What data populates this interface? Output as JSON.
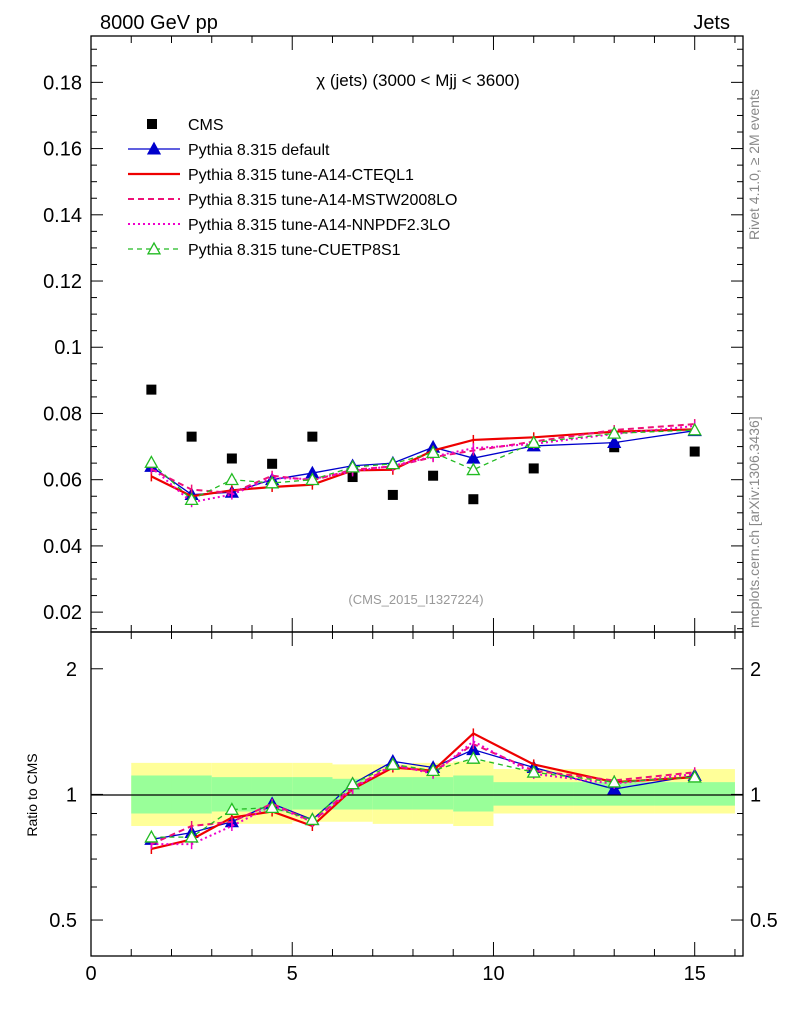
{
  "header": {
    "left": "8000 GeV pp",
    "right": "Jets",
    "plot_title": "χ (jets) (3000 < Mjj < 3600)",
    "analysis_id": "(CMS_2015_I1327224)",
    "side_label_top": "Rivet 4.1.0, ≥ 2M events",
    "side_label_bottom": "mcplots.cern.ch [arXiv:1306.3436]",
    "ratio_ylabel": "Ratio to CMS"
  },
  "colors": {
    "cms": "#000000",
    "default": "#0000cc",
    "cteql1": "#ee0000",
    "mstw": "#ee1177",
    "nnpdf": "#ee00cc",
    "cuetp8s1": "#22bb22",
    "band_inner": "#99ff99",
    "band_outer": "#ffff99"
  },
  "chart_data": [
    {
      "type": "scatter",
      "panel": "main",
      "title": "χ (jets) (3000 < Mjj < 3600)",
      "xlabel": "",
      "ylabel": "",
      "xlim": [
        0,
        16.2
      ],
      "ylim": [
        0.014,
        0.194
      ],
      "yticks": [
        "0.02",
        "0.04",
        "0.06",
        "0.08",
        "0.1",
        "0.12",
        "0.14",
        "0.16",
        "0.18"
      ],
      "legend_position": "top-left",
      "x": [
        1.5,
        2.5,
        3.5,
        4.5,
        5.5,
        6.5,
        7.5,
        8.5,
        9.5,
        11,
        13,
        15
      ],
      "series": [
        {
          "key": "cms",
          "name": "CMS",
          "style": "square",
          "values": [
            0.0872,
            0.073,
            0.0664,
            0.0648,
            0.073,
            0.0608,
            0.0554,
            0.0612,
            0.0541,
            0.0634,
            0.0698,
            0.0685
          ]
        },
        {
          "key": "default",
          "name": "Pythia 8.315 default",
          "style": "line-triangle",
          "values": [
            0.064,
            0.0555,
            0.0562,
            0.06,
            0.062,
            0.0642,
            0.065,
            0.0698,
            0.0665,
            0.0702,
            0.0712,
            0.0748
          ]
        },
        {
          "key": "cteql1",
          "name": "Pythia 8.315 tune-A14-CTEQL1",
          "style": "line",
          "values": [
            0.061,
            0.055,
            0.0568,
            0.0578,
            0.0585,
            0.0628,
            0.063,
            0.0688,
            0.072,
            0.0728,
            0.0745,
            0.0752
          ]
        },
        {
          "key": "mstw",
          "name": "Pythia 8.315 tune-A14-MSTW2008LO",
          "style": "dashed",
          "values": [
            0.0632,
            0.057,
            0.056,
            0.0612,
            0.0598,
            0.063,
            0.064,
            0.0668,
            0.0688,
            0.0715,
            0.075,
            0.0768
          ]
        },
        {
          "key": "nnpdf",
          "name": "Pythia 8.315 tune-A14-NNPDF2.3LO",
          "style": "dotted",
          "values": [
            0.0638,
            0.0532,
            0.0555,
            0.0605,
            0.0602,
            0.0625,
            0.0642,
            0.067,
            0.0695,
            0.0708,
            0.0738,
            0.0762
          ]
        },
        {
          "key": "cuetp8s1",
          "name": "Pythia 8.315 tune-CUETP8S1",
          "style": "dashed-open-triangle",
          "values": [
            0.0652,
            0.054,
            0.06,
            0.059,
            0.06,
            0.0638,
            0.0648,
            0.0682,
            0.063,
            0.0712,
            0.074,
            0.075
          ]
        }
      ],
      "ticks_x": [
        "0",
        "5",
        "10",
        "15"
      ]
    },
    {
      "type": "line",
      "panel": "ratio",
      "ylabel": "Ratio to CMS",
      "yscale": "log",
      "ylim": [
        0.41,
        2.45
      ],
      "yticks": [
        "0.5",
        "1",
        "2"
      ],
      "xlim": [
        0,
        16.2
      ],
      "x": [
        1.5,
        2.5,
        3.5,
        4.5,
        5.5,
        6.5,
        7.5,
        8.5,
        9.5,
        11,
        13,
        15
      ],
      "bands": {
        "x_edges": [
          1,
          2,
          3,
          4,
          5,
          6,
          7,
          8,
          9,
          10,
          12,
          14,
          16
        ],
        "inner": [
          [
            0.9,
            1.11
          ],
          [
            0.9,
            1.11
          ],
          [
            0.91,
            1.1
          ],
          [
            0.91,
            1.1
          ],
          [
            0.92,
            1.1
          ],
          [
            0.92,
            1.09
          ],
          [
            0.92,
            1.1
          ],
          [
            0.92,
            1.1
          ],
          [
            0.91,
            1.11
          ],
          [
            0.94,
            1.07
          ],
          [
            0.94,
            1.07
          ],
          [
            0.94,
            1.07
          ]
        ],
        "outer": [
          [
            0.84,
            1.19
          ],
          [
            0.84,
            1.19
          ],
          [
            0.85,
            1.19
          ],
          [
            0.85,
            1.19
          ],
          [
            0.86,
            1.19
          ],
          [
            0.86,
            1.18
          ],
          [
            0.85,
            1.18
          ],
          [
            0.85,
            1.19
          ],
          [
            0.84,
            1.2
          ],
          [
            0.9,
            1.15
          ],
          [
            0.9,
            1.15
          ],
          [
            0.9,
            1.15
          ]
        ]
      },
      "series": [
        {
          "key": "default",
          "values": [
            0.78,
            0.81,
            0.86,
            0.95,
            0.87,
            1.06,
            1.2,
            1.16,
            1.28,
            1.16,
            1.03,
            1.11
          ]
        },
        {
          "key": "cteql1",
          "values": [
            0.74,
            0.78,
            0.88,
            0.91,
            0.84,
            1.03,
            1.16,
            1.14,
            1.4,
            1.18,
            1.07,
            1.1
          ]
        },
        {
          "key": "mstw",
          "values": [
            0.76,
            0.84,
            0.86,
            0.95,
            0.86,
            1.04,
            1.17,
            1.13,
            1.32,
            1.14,
            1.08,
            1.13
          ]
        },
        {
          "key": "nnpdf",
          "values": [
            0.76,
            0.76,
            0.84,
            0.94,
            0.86,
            1.03,
            1.18,
            1.12,
            1.34,
            1.12,
            1.06,
            1.12
          ]
        },
        {
          "key": "cuetp8s1",
          "values": [
            0.79,
            0.79,
            0.92,
            0.93,
            0.87,
            1.06,
            1.18,
            1.14,
            1.22,
            1.13,
            1.07,
            1.1
          ]
        }
      ]
    }
  ]
}
